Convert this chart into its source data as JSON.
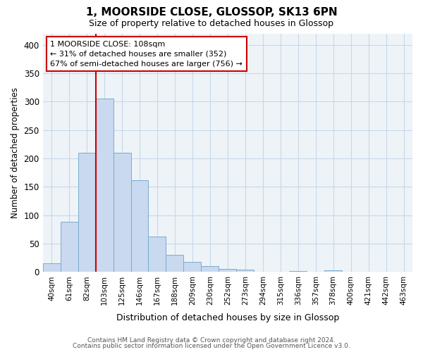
{
  "title": "1, MOORSIDE CLOSE, GLOSSOP, SK13 6PN",
  "subtitle": "Size of property relative to detached houses in Glossop",
  "xlabel": "Distribution of detached houses by size in Glossop",
  "ylabel": "Number of detached properties",
  "property_label": "1 MOORSIDE CLOSE: 108sqm",
  "stat1": "← 31% of detached houses are smaller (352)",
  "stat2": "67% of semi-detached houses are larger (756) →",
  "categories": [
    "40sqm",
    "61sqm",
    "82sqm",
    "103sqm",
    "125sqm",
    "146sqm",
    "167sqm",
    "188sqm",
    "209sqm",
    "230sqm",
    "252sqm",
    "273sqm",
    "294sqm",
    "315sqm",
    "336sqm",
    "357sqm",
    "378sqm",
    "400sqm",
    "421sqm",
    "442sqm",
    "463sqm"
  ],
  "values": [
    15,
    88,
    210,
    305,
    210,
    162,
    63,
    30,
    18,
    10,
    5,
    4,
    0,
    0,
    2,
    0,
    3,
    0,
    0,
    1,
    1
  ],
  "bar_color": "#c9d9ef",
  "bar_edge_color": "#7aabcf",
  "vline_color": "#cc0000",
  "annotation_box_color": "#cc0000",
  "grid_color": "#c8d8e8",
  "background_color": "#eef3f8",
  "footer1": "Contains HM Land Registry data © Crown copyright and database right 2024.",
  "footer2": "Contains public sector information licensed under the Open Government Licence v3.0.",
  "ylim": [
    0,
    420
  ],
  "yticks": [
    0,
    50,
    100,
    150,
    200,
    250,
    300,
    350,
    400
  ],
  "vline_pos": 2.5
}
